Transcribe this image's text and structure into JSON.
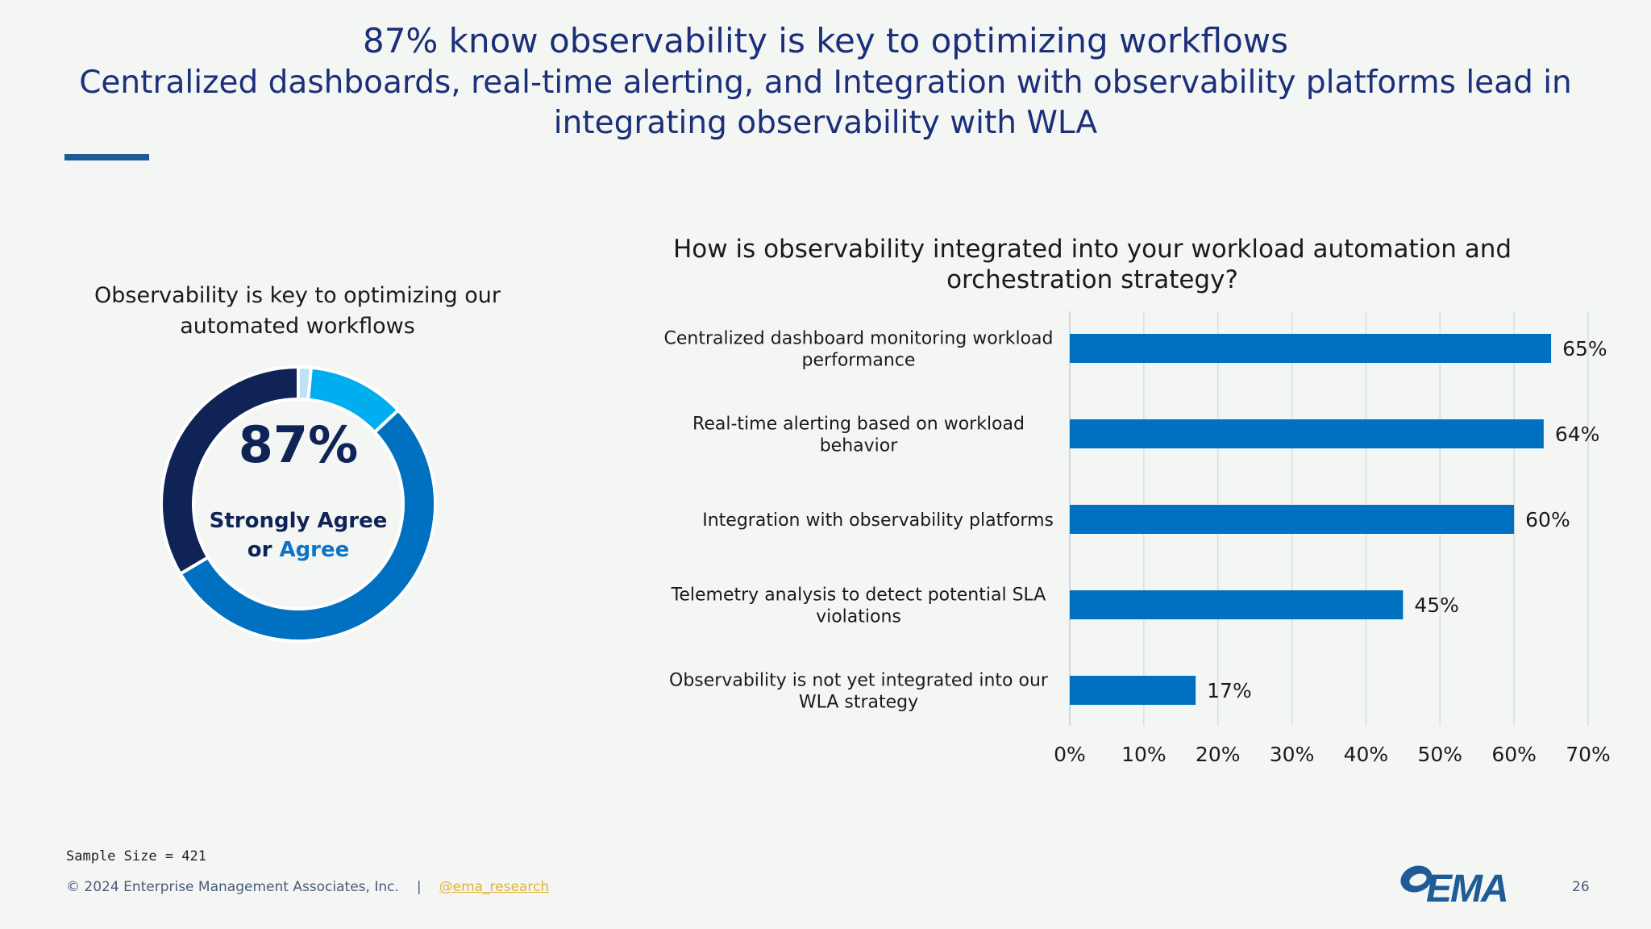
{
  "header": {
    "title": "87% know observability is key to optimizing workflows",
    "subtitle": "Centralized dashboards, real-time alerting, and Integration with observability platforms lead in integrating observability with WLA"
  },
  "donut": {
    "title": "Observability is key to optimizing our automated workflows",
    "center_value": "87%",
    "center_label_strong": "Strongly Agree",
    "center_label_or": "or",
    "center_label_agree": "Agree"
  },
  "chart_data": [
    {
      "type": "pie",
      "title": "Observability is key to optimizing our automated workflows",
      "style": "donut",
      "slices": [
        {
          "value": 1.5,
          "color": "#bfe0f7"
        },
        {
          "value": 11.5,
          "color": "#00aeef"
        },
        {
          "value": 53.5,
          "color": "#0070c0"
        },
        {
          "value": 33.5,
          "color": "#0f2356"
        }
      ]
    },
    {
      "type": "bar",
      "orientation": "horizontal",
      "title": "How is observability integrated into your workload automation and orchestration strategy?",
      "categories": [
        "Centralized dashboard monitoring workload performance",
        "Real-time alerting based on workload behavior",
        "Integration with observability platforms",
        "Telemetry analysis to detect potential SLA violations",
        "Observability is not yet integrated into our WLA strategy"
      ],
      "values": [
        65,
        64,
        60,
        45,
        17
      ],
      "data_labels": [
        "65%",
        "64%",
        "60%",
        "45%",
        "17%"
      ],
      "xlim": [
        0,
        70
      ],
      "ticks": [
        "0%",
        "10%",
        "20%",
        "30%",
        "40%",
        "50%",
        "60%",
        "70%"
      ],
      "grid": true,
      "bar_color": "#0070c0"
    }
  ],
  "footer": {
    "sample_size": "Sample Size = 421",
    "copyright": "© 2024 Enterprise Management Associates, Inc.",
    "separator": "|",
    "handle": "@ema_research",
    "page_number": "26",
    "logo_text": "EMA"
  }
}
